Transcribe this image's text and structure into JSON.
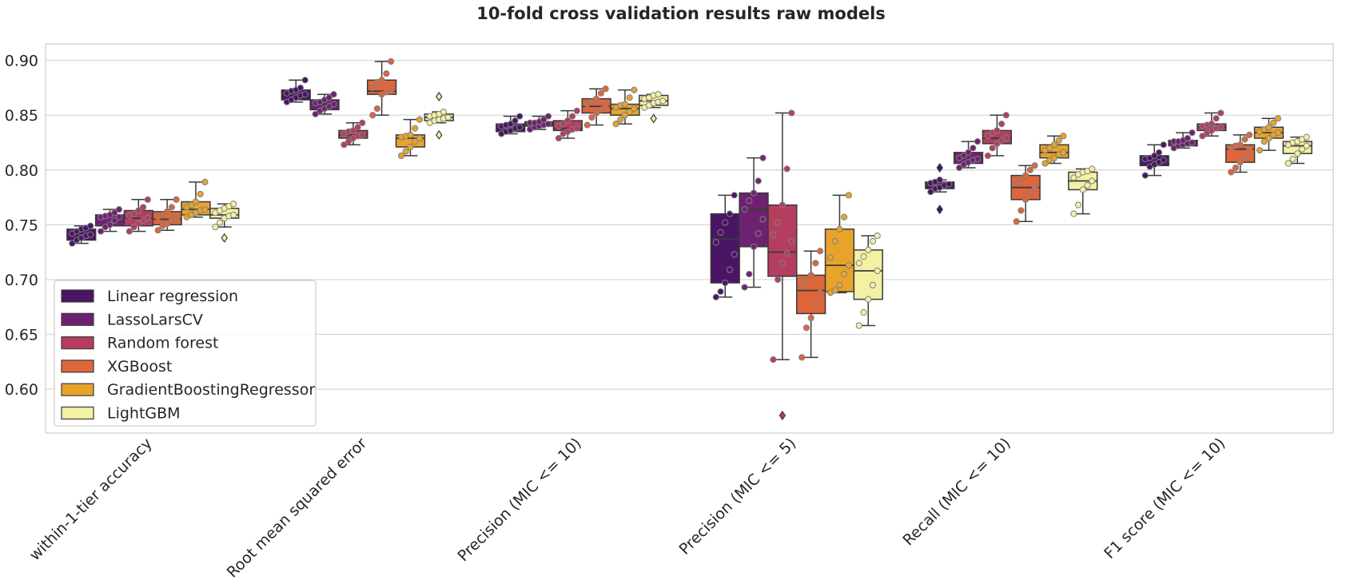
{
  "chart_data": {
    "type": "box",
    "title": "10-fold cross validation results raw models",
    "xlabel": "",
    "ylabel": "",
    "ylim": [
      0.56,
      0.915
    ],
    "yticks": [
      "0.90",
      "0.85",
      "0.80",
      "0.75",
      "0.70",
      "0.65",
      "0.60"
    ],
    "grid": true,
    "legend_position": "lower-left",
    "categories": [
      "within-1-tier accuracy",
      "Root mean squared error",
      "Precision (MIC <= 10)",
      "Precision (MIC <= 5)",
      "Recall (MIC <= 10)",
      "F1 score (MIC <= 10)"
    ],
    "series": [
      {
        "name": "Linear regression",
        "color": "#4a1565",
        "boxes": [
          {
            "q1": 0.736,
            "median": 0.741,
            "q3": 0.746,
            "whislo": 0.733,
            "whishi": 0.749,
            "fliers": [],
            "points": [
              0.733,
              0.736,
              0.738,
              0.74,
              0.741,
              0.742,
              0.744,
              0.746,
              0.747,
              0.749
            ]
          },
          {
            "q1": 0.864,
            "median": 0.869,
            "q3": 0.873,
            "whislo": 0.862,
            "whishi": 0.882,
            "fliers": [],
            "points": [
              0.862,
              0.864,
              0.866,
              0.868,
              0.869,
              0.87,
              0.872,
              0.873,
              0.875,
              0.882
            ]
          },
          {
            "q1": 0.835,
            "median": 0.839,
            "q3": 0.842,
            "whislo": 0.833,
            "whishi": 0.849,
            "fliers": [],
            "points": [
              0.833,
              0.835,
              0.836,
              0.838,
              0.839,
              0.84,
              0.841,
              0.842,
              0.845,
              0.849
            ]
          },
          {
            "q1": 0.697,
            "median": 0.737,
            "q3": 0.76,
            "whislo": 0.684,
            "whishi": 0.777,
            "fliers": [],
            "points": [
              0.684,
              0.689,
              0.697,
              0.709,
              0.723,
              0.734,
              0.743,
              0.752,
              0.76,
              0.777
            ]
          },
          {
            "q1": 0.783,
            "median": 0.786,
            "q3": 0.789,
            "whislo": 0.78,
            "whishi": 0.791,
            "fliers": [
              0.764,
              0.802
            ],
            "points": [
              0.78,
              0.783,
              0.784,
              0.786,
              0.787,
              0.788,
              0.789,
              0.791
            ]
          },
          {
            "q1": 0.804,
            "median": 0.809,
            "q3": 0.813,
            "whislo": 0.795,
            "whishi": 0.823,
            "fliers": [],
            "points": [
              0.795,
              0.803,
              0.805,
              0.807,
              0.809,
              0.81,
              0.811,
              0.813,
              0.816,
              0.823
            ]
          }
        ]
      },
      {
        "name": "LassoLarsCV",
        "color": "#6f2171",
        "boxes": [
          {
            "q1": 0.749,
            "median": 0.757,
            "q3": 0.759,
            "whislo": 0.744,
            "whishi": 0.764,
            "fliers": [],
            "points": [
              0.744,
              0.748,
              0.75,
              0.754,
              0.757,
              0.757,
              0.758,
              0.759,
              0.761,
              0.764
            ]
          },
          {
            "q1": 0.855,
            "median": 0.86,
            "q3": 0.864,
            "whislo": 0.851,
            "whishi": 0.869,
            "fliers": [],
            "points": [
              0.851,
              0.854,
              0.856,
              0.858,
              0.86,
              0.861,
              0.862,
              0.864,
              0.866,
              0.869
            ]
          },
          {
            "q1": 0.84,
            "median": 0.842,
            "q3": 0.844,
            "whislo": 0.837,
            "whishi": 0.849,
            "fliers": [],
            "points": [
              0.837,
              0.839,
              0.84,
              0.841,
              0.842,
              0.843,
              0.843,
              0.844,
              0.846,
              0.849
            ]
          },
          {
            "q1": 0.73,
            "median": 0.764,
            "q3": 0.779,
            "whislo": 0.693,
            "whishi": 0.811,
            "fliers": [],
            "points": [
              0.693,
              0.705,
              0.73,
              0.742,
              0.755,
              0.764,
              0.772,
              0.779,
              0.79,
              0.811
            ]
          },
          {
            "q1": 0.806,
            "median": 0.81,
            "q3": 0.816,
            "whislo": 0.802,
            "whishi": 0.826,
            "fliers": [],
            "points": [
              0.802,
              0.805,
              0.807,
              0.809,
              0.81,
              0.811,
              0.813,
              0.816,
              0.82,
              0.826
            ]
          },
          {
            "q1": 0.822,
            "median": 0.825,
            "q3": 0.827,
            "whislo": 0.82,
            "whishi": 0.834,
            "fliers": [],
            "points": [
              0.82,
              0.822,
              0.823,
              0.824,
              0.825,
              0.826,
              0.826,
              0.827,
              0.829,
              0.834
            ]
          }
        ]
      },
      {
        "name": "Random forest",
        "color": "#b53e5f",
        "boxes": [
          {
            "q1": 0.749,
            "median": 0.756,
            "q3": 0.763,
            "whislo": 0.744,
            "whishi": 0.773,
            "fliers": [],
            "points": [
              0.744,
              0.748,
              0.751,
              0.754,
              0.756,
              0.758,
              0.76,
              0.763,
              0.766,
              0.773
            ]
          },
          {
            "q1": 0.829,
            "median": 0.832,
            "q3": 0.836,
            "whislo": 0.823,
            "whishi": 0.843,
            "fliers": [],
            "points": [
              0.823,
              0.826,
              0.829,
              0.831,
              0.832,
              0.833,
              0.835,
              0.836,
              0.839,
              0.843
            ]
          },
          {
            "q1": 0.836,
            "median": 0.838,
            "q3": 0.845,
            "whislo": 0.829,
            "whishi": 0.854,
            "fliers": [],
            "points": [
              0.829,
              0.833,
              0.835,
              0.837,
              0.838,
              0.84,
              0.842,
              0.845,
              0.849,
              0.854
            ]
          },
          {
            "q1": 0.703,
            "median": 0.725,
            "q3": 0.768,
            "whislo": 0.627,
            "whishi": 0.852,
            "fliers": [
              0.576
            ],
            "points": [
              0.627,
              0.7,
              0.715,
              0.724,
              0.735,
              0.741,
              0.752,
              0.768,
              0.801,
              0.852
            ]
          },
          {
            "q1": 0.824,
            "median": 0.829,
            "q3": 0.836,
            "whislo": 0.813,
            "whishi": 0.85,
            "fliers": [],
            "points": [
              0.813,
              0.82,
              0.824,
              0.827,
              0.829,
              0.831,
              0.834,
              0.836,
              0.842,
              0.85
            ]
          },
          {
            "q1": 0.836,
            "median": 0.839,
            "q3": 0.842,
            "whislo": 0.831,
            "whishi": 0.852,
            "fliers": [],
            "points": [
              0.831,
              0.834,
              0.836,
              0.838,
              0.839,
              0.84,
              0.841,
              0.842,
              0.847,
              0.852
            ]
          }
        ]
      },
      {
        "name": "XGBoost",
        "color": "#e0653a",
        "boxes": [
          {
            "q1": 0.75,
            "median": 0.755,
            "q3": 0.762,
            "whislo": 0.745,
            "whishi": 0.773,
            "fliers": [],
            "points": [
              0.745,
              0.749,
              0.751,
              0.754,
              0.755,
              0.757,
              0.759,
              0.762,
              0.766,
              0.773
            ]
          },
          {
            "q1": 0.869,
            "median": 0.872,
            "q3": 0.882,
            "whislo": 0.85,
            "whishi": 0.899,
            "fliers": [],
            "points": [
              0.85,
              0.856,
              0.869,
              0.871,
              0.872,
              0.875,
              0.88,
              0.882,
              0.888,
              0.899
            ]
          },
          {
            "q1": 0.852,
            "median": 0.858,
            "q3": 0.865,
            "whislo": 0.841,
            "whishi": 0.874,
            "fliers": [],
            "points": [
              0.841,
              0.848,
              0.852,
              0.855,
              0.858,
              0.86,
              0.862,
              0.865,
              0.87,
              0.874
            ]
          },
          {
            "q1": 0.669,
            "median": 0.69,
            "q3": 0.704,
            "whislo": 0.629,
            "whishi": 0.726,
            "fliers": [],
            "points": [
              0.629,
              0.656,
              0.665,
              0.678,
              0.688,
              0.694,
              0.7,
              0.704,
              0.715,
              0.726
            ]
          },
          {
            "q1": 0.773,
            "median": 0.784,
            "q3": 0.795,
            "whislo": 0.753,
            "whishi": 0.804,
            "fliers": [],
            "points": [
              0.753,
              0.763,
              0.773,
              0.78,
              0.784,
              0.788,
              0.792,
              0.795,
              0.8,
              0.804
            ]
          },
          {
            "q1": 0.807,
            "median": 0.819,
            "q3": 0.823,
            "whislo": 0.798,
            "whishi": 0.832,
            "fliers": [],
            "points": [
              0.798,
              0.802,
              0.807,
              0.812,
              0.819,
              0.82,
              0.822,
              0.823,
              0.828,
              0.832
            ]
          }
        ]
      },
      {
        "name": "GradientBoostingRegressor",
        "color": "#e8a42a",
        "boxes": [
          {
            "q1": 0.759,
            "median": 0.764,
            "q3": 0.771,
            "whislo": 0.757,
            "whishi": 0.789,
            "fliers": [],
            "points": [
              0.757,
              0.759,
              0.761,
              0.763,
              0.764,
              0.766,
              0.768,
              0.771,
              0.778,
              0.789
            ]
          },
          {
            "q1": 0.821,
            "median": 0.829,
            "q3": 0.832,
            "whislo": 0.813,
            "whishi": 0.846,
            "fliers": [],
            "points": [
              0.813,
              0.817,
              0.821,
              0.826,
              0.829,
              0.83,
              0.831,
              0.832,
              0.838,
              0.846
            ]
          },
          {
            "q1": 0.85,
            "median": 0.856,
            "q3": 0.86,
            "whislo": 0.842,
            "whishi": 0.873,
            "fliers": [],
            "points": [
              0.842,
              0.846,
              0.85,
              0.853,
              0.856,
              0.857,
              0.859,
              0.86,
              0.866,
              0.873
            ]
          },
          {
            "q1": 0.689,
            "median": 0.713,
            "q3": 0.746,
            "whislo": 0.688,
            "whishi": 0.777,
            "fliers": [],
            "points": [
              0.688,
              0.69,
              0.695,
              0.705,
              0.713,
              0.72,
              0.735,
              0.746,
              0.757,
              0.777
            ]
          },
          {
            "q1": 0.811,
            "median": 0.816,
            "q3": 0.823,
            "whislo": 0.806,
            "whishi": 0.831,
            "fliers": [],
            "points": [
              0.806,
              0.809,
              0.811,
              0.814,
              0.816,
              0.818,
              0.82,
              0.823,
              0.827,
              0.831
            ]
          },
          {
            "q1": 0.829,
            "median": 0.834,
            "q3": 0.839,
            "whislo": 0.818,
            "whishi": 0.847,
            "fliers": [],
            "points": [
              0.818,
              0.826,
              0.829,
              0.832,
              0.834,
              0.835,
              0.837,
              0.839,
              0.843,
              0.847
            ]
          }
        ]
      },
      {
        "name": "LightGBM",
        "color": "#f4f0a4",
        "boxes": [
          {
            "q1": 0.756,
            "median": 0.759,
            "q3": 0.765,
            "whislo": 0.748,
            "whishi": 0.769,
            "fliers": [
              0.738
            ],
            "points": [
              0.748,
              0.752,
              0.756,
              0.758,
              0.759,
              0.761,
              0.763,
              0.765,
              0.767,
              0.769
            ]
          },
          {
            "q1": 0.845,
            "median": 0.848,
            "q3": 0.851,
            "whislo": 0.843,
            "whishi": 0.853,
            "fliers": [
              0.832,
              0.867
            ],
            "points": [
              0.843,
              0.845,
              0.846,
              0.847,
              0.848,
              0.849,
              0.85,
              0.851,
              0.853
            ]
          },
          {
            "q1": 0.859,
            "median": 0.863,
            "q3": 0.868,
            "whislo": 0.857,
            "whishi": 0.869,
            "fliers": [
              0.847
            ],
            "points": [
              0.857,
              0.859,
              0.861,
              0.862,
              0.863,
              0.865,
              0.866,
              0.868,
              0.869
            ]
          },
          {
            "q1": 0.682,
            "median": 0.708,
            "q3": 0.727,
            "whislo": 0.658,
            "whishi": 0.74,
            "fliers": [],
            "points": [
              0.658,
              0.67,
              0.682,
              0.695,
              0.708,
              0.715,
              0.721,
              0.727,
              0.735,
              0.74
            ]
          },
          {
            "q1": 0.782,
            "median": 0.79,
            "q3": 0.798,
            "whislo": 0.76,
            "whishi": 0.801,
            "fliers": [],
            "points": [
              0.76,
              0.768,
              0.782,
              0.786,
              0.79,
              0.793,
              0.796,
              0.798,
              0.799,
              0.801
            ]
          },
          {
            "q1": 0.815,
            "median": 0.822,
            "q3": 0.826,
            "whislo": 0.806,
            "whishi": 0.83,
            "fliers": [],
            "points": [
              0.806,
              0.81,
              0.815,
              0.819,
              0.822,
              0.823,
              0.825,
              0.826,
              0.828,
              0.83
            ]
          }
        ]
      }
    ]
  }
}
